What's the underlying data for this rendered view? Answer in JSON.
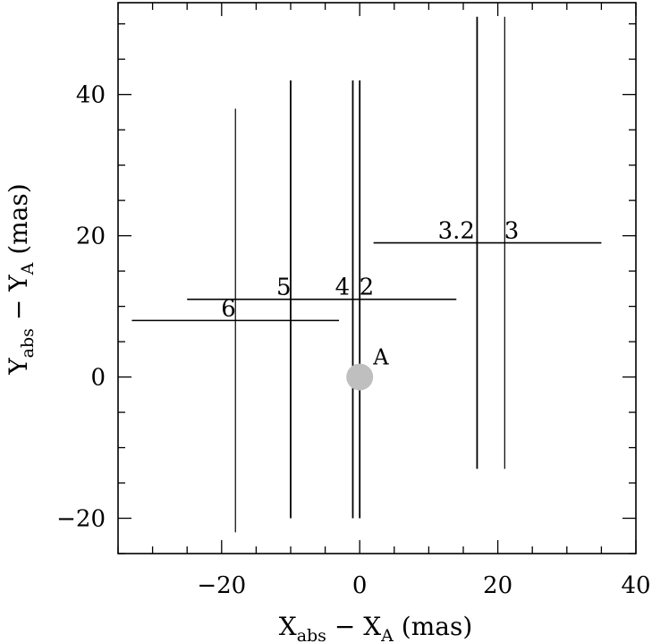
{
  "chart_data": {
    "type": "scatter",
    "title": "",
    "xlabel": {
      "main": "X",
      "sub": "abs",
      "mid": " − X",
      "sub2": "A",
      "tail": " (mas)"
    },
    "ylabel": {
      "main": "Y",
      "sub": "abs",
      "mid": " − Y",
      "sub2": "A",
      "tail": " (mas)"
    },
    "xlim": [
      -35,
      40
    ],
    "ylim": [
      -25,
      53
    ],
    "xticks": [
      -20,
      0,
      20,
      40
    ],
    "yticks": [
      -20,
      0,
      20,
      40
    ],
    "xtick_labels": [
      "−20",
      "0",
      "20",
      "40"
    ],
    "ytick_labels": [
      "−20",
      "0",
      "20",
      "40"
    ],
    "grid": false,
    "reference_point": {
      "label": "A",
      "x": 0,
      "y": 0,
      "color": "#bfbfbf"
    },
    "points": [
      {
        "label": "6",
        "x": -18,
        "y": 8,
        "x_range": [
          -33,
          -3
        ],
        "y_range": [
          -22,
          38
        ],
        "label_x": -19,
        "label_y": 8.5
      },
      {
        "label": "5",
        "x": -10,
        "y": 11,
        "x_range": [
          -25,
          14
        ],
        "y_range": [
          -20,
          42
        ],
        "label_x": -11,
        "label_y": 11.5
      },
      {
        "label": "4",
        "x": -1,
        "y": 11,
        "x_range": [
          -25,
          14
        ],
        "y_range": [
          -20,
          42
        ],
        "label_x": -2.5,
        "label_y": 11.5
      },
      {
        "label": "2",
        "x": 0,
        "y": 11,
        "x_range": [
          -25,
          14
        ],
        "y_range": [
          -20,
          42
        ],
        "label_x": 1,
        "label_y": 11.5
      },
      {
        "label": "3.2",
        "x": 17,
        "y": 19,
        "x_range": [
          2,
          35
        ],
        "y_range": [
          -13,
          51
        ],
        "label_x": 14,
        "label_y": 19.5
      },
      {
        "label": "3",
        "x": 21,
        "y": 19,
        "x_range": [
          2,
          35
        ],
        "y_range": [
          -13,
          51
        ],
        "label_x": 22,
        "label_y": 19.5
      }
    ]
  }
}
